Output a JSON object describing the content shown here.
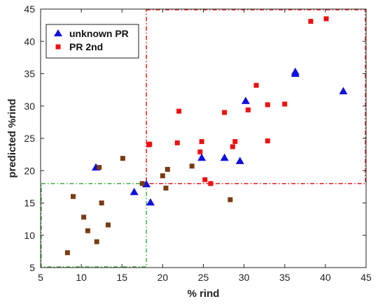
{
  "chart_data": {
    "type": "scatter",
    "title": "",
    "xlabel": "% rind",
    "ylabel": "predicted %rind",
    "xlim": [
      5,
      45
    ],
    "ylim": [
      5,
      45
    ],
    "xticks": [
      "5",
      "10",
      "15",
      "20",
      "25",
      "30",
      "35",
      "40",
      "45"
    ],
    "yticks": [
      "5",
      "10",
      "15",
      "20",
      "25",
      "30",
      "35",
      "40",
      "45"
    ],
    "grid": false,
    "legend": {
      "placement": "top-left"
    },
    "series": [
      {
        "name": "unknown PR",
        "marker": "triangle",
        "color": "#1010e0",
        "points": [
          [
            11.8,
            20.5
          ],
          [
            16.5,
            16.7
          ],
          [
            18.0,
            17.9
          ],
          [
            18.5,
            15.1
          ],
          [
            24.8,
            22.0
          ],
          [
            27.6,
            22.0
          ],
          [
            29.5,
            21.5
          ],
          [
            30.2,
            30.8
          ],
          [
            36.3,
            35.0
          ],
          [
            36.3,
            35.3
          ],
          [
            42.2,
            32.3
          ]
        ]
      },
      {
        "name": "PR 2nd",
        "marker": "square",
        "color": "#ee1010",
        "points": [
          [
            18.3,
            24.0
          ],
          [
            18.4,
            24.1
          ],
          [
            21.8,
            24.3
          ],
          [
            22.0,
            29.2
          ],
          [
            24.6,
            22.9
          ],
          [
            24.8,
            24.5
          ],
          [
            25.2,
            18.6
          ],
          [
            25.9,
            18.0
          ],
          [
            27.6,
            29.0
          ],
          [
            28.6,
            23.7
          ],
          [
            28.9,
            24.5
          ],
          [
            30.5,
            29.4
          ],
          [
            31.5,
            33.2
          ],
          [
            32.9,
            30.2
          ],
          [
            32.9,
            24.6
          ],
          [
            35.0,
            30.3
          ],
          [
            38.2,
            43.1
          ],
          [
            40.1,
            43.5
          ]
        ]
      },
      {
        "name": "",
        "marker": "square",
        "color": "#7a3b12",
        "points": [
          [
            8.3,
            7.3
          ],
          [
            9.0,
            16.0
          ],
          [
            10.3,
            12.8
          ],
          [
            10.8,
            10.7
          ],
          [
            11.9,
            9.0
          ],
          [
            12.2,
            20.5
          ],
          [
            12.5,
            15.0
          ],
          [
            13.3,
            11.6
          ],
          [
            15.1,
            21.9
          ],
          [
            17.5,
            18.0
          ],
          [
            20.0,
            19.2
          ],
          [
            20.4,
            17.3
          ],
          [
            20.6,
            20.2
          ],
          [
            23.6,
            20.7
          ],
          [
            28.3,
            15.5
          ]
        ]
      }
    ],
    "regions": [
      {
        "color": "#40b040",
        "x": [
          5,
          18
        ],
        "y": [
          5,
          18
        ]
      },
      {
        "color": "#e81818",
        "x": [
          18,
          45
        ],
        "y": [
          18,
          45
        ]
      }
    ]
  }
}
